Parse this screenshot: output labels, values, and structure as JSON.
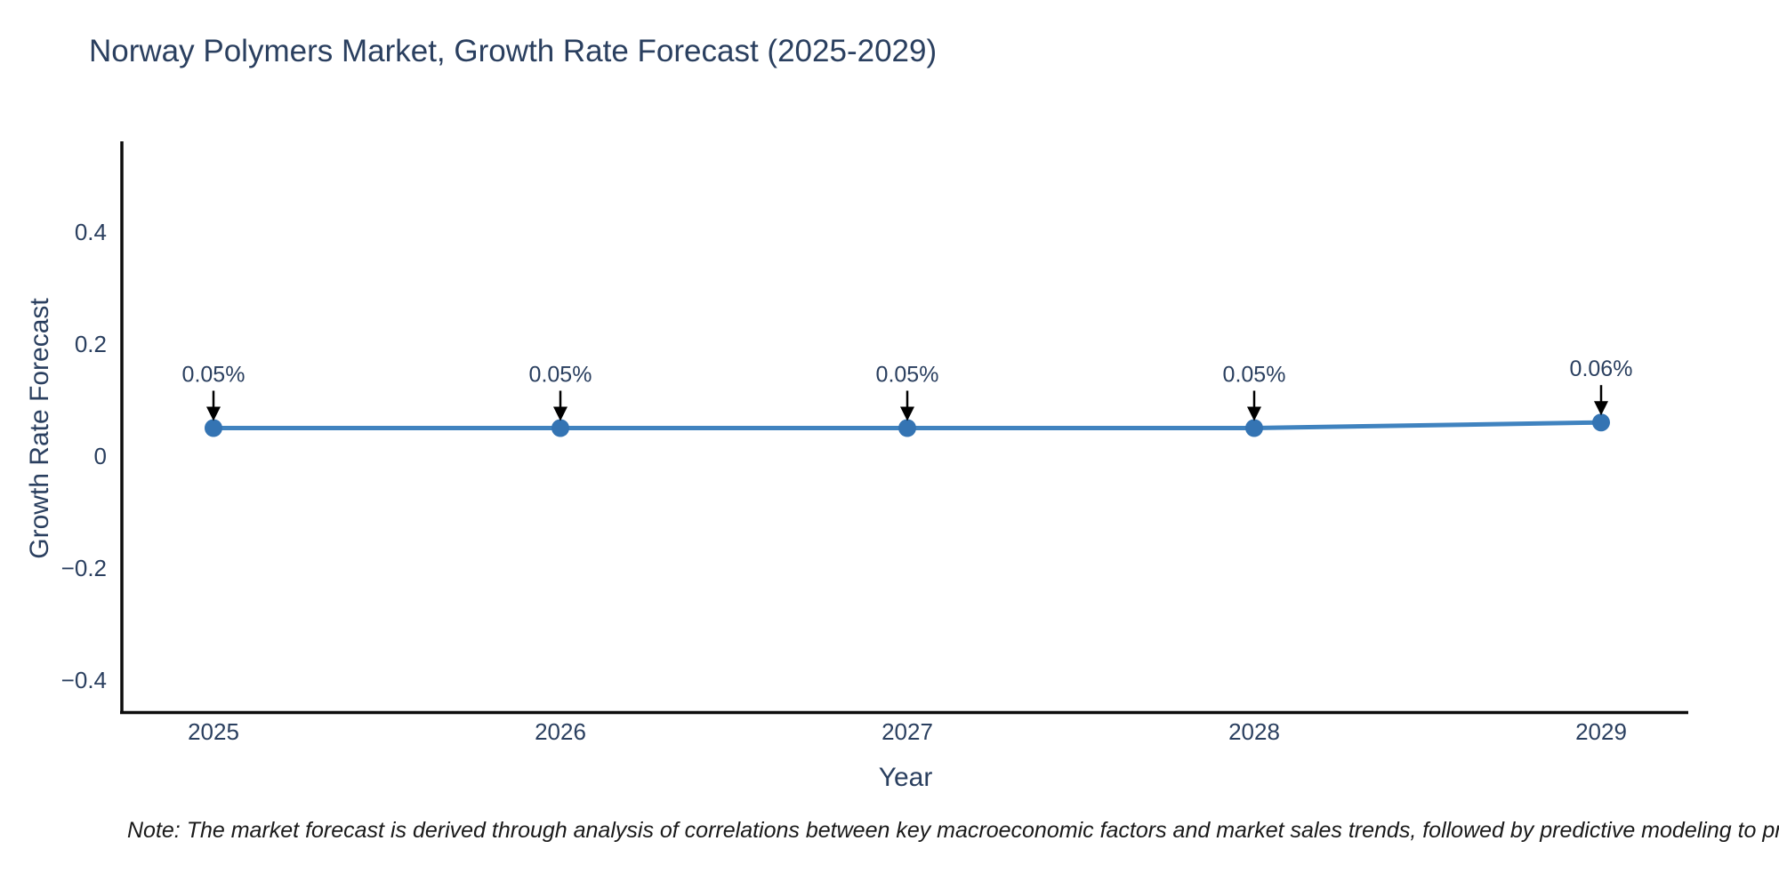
{
  "title": "Norway Polymers Market, Growth Rate Forecast (2025-2029)",
  "note": "Note: The market forecast is derived through analysis of correlations between key macroeconomic factors and market sales trends, followed by predictive modeling to project future sa",
  "chart_data": {
    "type": "line",
    "title": "Norway Polymers Market, Growth Rate Forecast (2025-2029)",
    "xlabel": "Year",
    "ylabel": "Growth Rate Forecast",
    "categories": [
      "2025",
      "2026",
      "2027",
      "2028",
      "2029"
    ],
    "series": [
      {
        "name": "Growth Rate Forecast",
        "values": [
          0.05,
          0.05,
          0.05,
          0.05,
          0.06
        ],
        "point_labels": [
          "0.05%",
          "0.05%",
          "0.05%",
          "0.05%",
          "0.06%"
        ]
      }
    ],
    "yticks": [
      0.4,
      0.2,
      0,
      -0.2,
      -0.4
    ],
    "ytick_labels": [
      "0.4",
      "0.2",
      "0",
      "−0.2",
      "−0.4"
    ],
    "ylim": [
      -0.46,
      0.56
    ],
    "grid": false,
    "legend": "none",
    "colors": {
      "line": "#4083bf",
      "marker": "#3474b3",
      "axis": "#0d0d0d",
      "arrow": "#000000",
      "text": "#2a3f5f"
    }
  }
}
